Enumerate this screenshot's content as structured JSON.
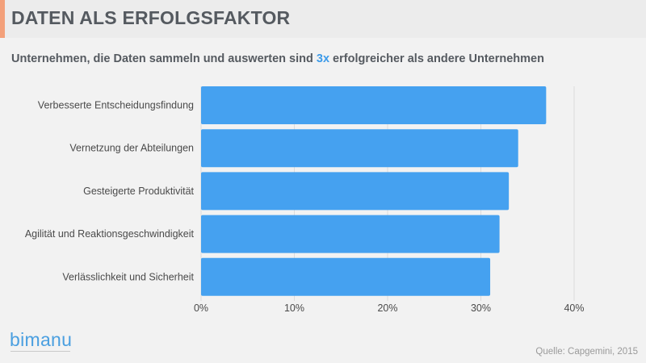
{
  "header": {
    "title": "DATEN ALS ERFOLGSFAKTOR",
    "subtitle_before": "Unternehmen, die Daten sammeln und auswerten sind ",
    "subtitle_highlight": "3x",
    "subtitle_after": " erfolgreicher als andere Unternehmen"
  },
  "colors": {
    "bar": "#45a1f0",
    "accent": "#f3a07a",
    "highlight": "#3d9be9"
  },
  "chart_data": {
    "type": "bar",
    "orientation": "horizontal",
    "categories": [
      "Verbesserte Entscheidungsfindung",
      "Vernetzung der Abteilungen",
      "Gesteigerte Produktivität",
      "Agilität und Reaktionsgeschwindigkeit",
      "Verlässlichkeit und Sicherheit"
    ],
    "values": [
      37,
      34,
      33,
      32,
      31
    ],
    "xlim": [
      0,
      40
    ],
    "xticks": [
      "0%",
      "10%",
      "20%",
      "30%",
      "40%"
    ],
    "grid": true
  },
  "footer": {
    "logo": "bimanu",
    "source": "Quelle: Capgemini, 2015"
  }
}
